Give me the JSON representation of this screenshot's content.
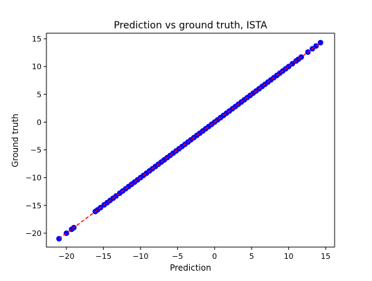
{
  "chart_data": {
    "type": "scatter",
    "title": "Prediction vs ground truth, ISTA",
    "xlabel": "Prediction",
    "ylabel": "Ground truth",
    "xlim": [
      -22.7,
      16.2
    ],
    "ylim": [
      -22.5,
      16.0
    ],
    "xticks": [
      -20,
      -15,
      -10,
      -5,
      0,
      5,
      10,
      15
    ],
    "yticks": [
      -20,
      -15,
      -10,
      -5,
      0,
      5,
      10,
      15
    ],
    "xtick_labels": [
      "−20",
      "−15",
      "−10",
      "−5",
      "0",
      "5",
      "10",
      "15"
    ],
    "ytick_labels": [
      "−20",
      "−15",
      "−10",
      "−5",
      "0",
      "5",
      "10",
      "15"
    ],
    "grid": false,
    "reference_line": {
      "style": "dashed",
      "color": "#ff0000",
      "from": [
        -21.0,
        -21.0
      ],
      "to": [
        14.3,
        14.3
      ]
    },
    "marker_color": "#0000ff",
    "series": [
      {
        "x": [
          -21.0,
          -20.0,
          -19.3,
          -19.0,
          -16.1,
          -15.8,
          -15.4,
          -14.9,
          -14.5,
          -14.1,
          -13.7,
          -13.3,
          -12.8,
          -12.4,
          -12.0,
          -11.6,
          -11.2,
          -10.8,
          -10.4,
          -10.0,
          -9.6,
          -9.2,
          -8.8,
          -8.4,
          -8.0,
          -7.6,
          -7.2,
          -6.8,
          -6.4,
          -6.0,
          -5.6,
          -5.2,
          -4.8,
          -4.4,
          -4.0,
          -3.6,
          -3.2,
          -2.8,
          -2.4,
          -2.0,
          -1.6,
          -1.2,
          -0.8,
          -0.4,
          0.0,
          0.4,
          0.8,
          1.2,
          1.6,
          2.0,
          2.4,
          2.8,
          3.2,
          3.6,
          4.0,
          4.4,
          4.8,
          5.2,
          5.6,
          6.0,
          6.4,
          6.8,
          7.2,
          7.6,
          8.0,
          8.4,
          8.8,
          9.2,
          9.6,
          10.0,
          10.5,
          11.0,
          11.3,
          11.7,
          12.6,
          13.2,
          13.7,
          14.3
        ],
        "y": [
          -21.0,
          -20.0,
          -19.3,
          -19.0,
          -16.1,
          -15.8,
          -15.4,
          -14.9,
          -14.5,
          -14.1,
          -13.7,
          -13.3,
          -12.8,
          -12.4,
          -12.0,
          -11.6,
          -11.2,
          -10.8,
          -10.4,
          -10.0,
          -9.6,
          -9.2,
          -8.8,
          -8.4,
          -8.0,
          -7.6,
          -7.2,
          -6.8,
          -6.4,
          -6.0,
          -5.6,
          -5.2,
          -4.8,
          -4.4,
          -4.0,
          -3.6,
          -3.2,
          -2.8,
          -2.4,
          -2.0,
          -1.6,
          -1.2,
          -0.8,
          -0.4,
          0.0,
          0.4,
          0.8,
          1.2,
          1.6,
          2.0,
          2.4,
          2.8,
          3.2,
          3.6,
          4.0,
          4.4,
          4.8,
          5.2,
          5.6,
          6.0,
          6.4,
          6.8,
          7.2,
          7.6,
          8.0,
          8.4,
          8.8,
          9.2,
          9.6,
          10.0,
          10.5,
          11.0,
          11.3,
          11.7,
          12.6,
          13.2,
          13.7,
          14.3
        ]
      }
    ]
  }
}
